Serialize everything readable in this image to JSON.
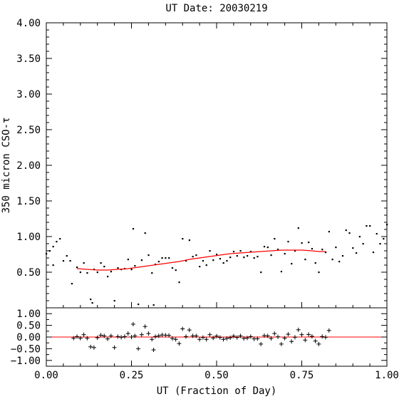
{
  "chart_data": [
    {
      "type": "scatter",
      "title": "UT Date: 20030219",
      "ylabel": "350 micron CSO-τ",
      "xlabel": "",
      "xlim": [
        0,
        1
      ],
      "ylim": [
        0,
        4
      ],
      "x_ticks": [
        0,
        0.25,
        0.5,
        0.75,
        1
      ],
      "y_tick_labels": [
        "0.50",
        "1.00",
        "1.50",
        "2.00",
        "2.50",
        "3.00",
        "3.50",
        "4.00"
      ],
      "y_ticks": [
        0.5,
        1.0,
        1.5,
        2.0,
        2.5,
        3.0,
        3.5,
        4.0
      ],
      "grid": false,
      "series": [
        {
          "marker": "dot",
          "color": "#000000",
          "points": [
            [
              0.0,
              0.76
            ],
            [
              0.01,
              0.8
            ],
            [
              0.02,
              0.86
            ],
            [
              0.03,
              0.93
            ],
            [
              0.04,
              0.97
            ],
            [
              0.02,
              0.6
            ],
            [
              0.05,
              0.66
            ],
            [
              0.06,
              0.73
            ],
            [
              0.07,
              0.66
            ],
            [
              0.075,
              0.34
            ],
            [
              0.09,
              0.57
            ],
            [
              0.1,
              0.5
            ],
            [
              0.11,
              0.63
            ],
            [
              0.12,
              0.49
            ],
            [
              0.13,
              0.12
            ],
            [
              0.135,
              0.07
            ],
            [
              0.14,
              0.54
            ],
            [
              0.15,
              0.5
            ],
            [
              0.16,
              0.63
            ],
            [
              0.17,
              0.58
            ],
            [
              0.18,
              0.44
            ],
            [
              0.19,
              0.51
            ],
            [
              0.2,
              0.1
            ],
            [
              0.21,
              0.56
            ],
            [
              0.22,
              0.54
            ],
            [
              0.23,
              0.55
            ],
            [
              0.24,
              0.68
            ],
            [
              0.25,
              0.54
            ],
            [
              0.255,
              1.11
            ],
            [
              0.26,
              0.59
            ],
            [
              0.27,
              0.05
            ],
            [
              0.28,
              0.67
            ],
            [
              0.29,
              1.05
            ],
            [
              0.3,
              0.74
            ],
            [
              0.31,
              0.49
            ],
            [
              0.315,
              0.04
            ],
            [
              0.32,
              0.61
            ],
            [
              0.33,
              0.65
            ],
            [
              0.34,
              0.7
            ],
            [
              0.35,
              0.7
            ],
            [
              0.36,
              0.7
            ],
            [
              0.37,
              0.56
            ],
            [
              0.38,
              0.53
            ],
            [
              0.39,
              0.36
            ],
            [
              0.4,
              0.97
            ],
            [
              0.41,
              0.66
            ],
            [
              0.42,
              0.95
            ],
            [
              0.43,
              0.72
            ],
            [
              0.44,
              0.74
            ],
            [
              0.45,
              0.58
            ],
            [
              0.46,
              0.66
            ],
            [
              0.47,
              0.6
            ],
            [
              0.48,
              0.8
            ],
            [
              0.49,
              0.67
            ],
            [
              0.5,
              0.75
            ],
            [
              0.51,
              0.69
            ],
            [
              0.52,
              0.63
            ],
            [
              0.53,
              0.66
            ],
            [
              0.54,
              0.71
            ],
            [
              0.55,
              0.79
            ],
            [
              0.56,
              0.73
            ],
            [
              0.57,
              0.8
            ],
            [
              0.58,
              0.71
            ],
            [
              0.59,
              0.73
            ],
            [
              0.6,
              0.79
            ],
            [
              0.61,
              0.7
            ],
            [
              0.62,
              0.72
            ],
            [
              0.63,
              0.5
            ],
            [
              0.64,
              0.86
            ],
            [
              0.65,
              0.85
            ],
            [
              0.66,
              0.74
            ],
            [
              0.67,
              0.97
            ],
            [
              0.68,
              0.82
            ],
            [
              0.69,
              0.51
            ],
            [
              0.7,
              0.76
            ],
            [
              0.71,
              0.93
            ],
            [
              0.72,
              0.62
            ],
            [
              0.73,
              0.8
            ],
            [
              0.74,
              1.12
            ],
            [
              0.75,
              0.91
            ],
            [
              0.76,
              0.68
            ],
            [
              0.77,
              0.92
            ],
            [
              0.78,
              0.83
            ],
            [
              0.79,
              0.63
            ],
            [
              0.8,
              0.5
            ],
            [
              0.81,
              0.82
            ],
            [
              0.82,
              0.78
            ],
            [
              0.83,
              1.07
            ],
            [
              0.84,
              0.68
            ],
            [
              0.85,
              0.85
            ],
            [
              0.86,
              0.65
            ],
            [
              0.87,
              0.73
            ],
            [
              0.88,
              1.09
            ],
            [
              0.89,
              1.05
            ],
            [
              0.9,
              0.84
            ],
            [
              0.91,
              0.77
            ],
            [
              0.92,
              1.0
            ],
            [
              0.93,
              0.9
            ],
            [
              0.94,
              1.15
            ],
            [
              0.95,
              1.15
            ],
            [
              0.96,
              0.78
            ],
            [
              0.97,
              1.04
            ],
            [
              0.98,
              0.9
            ],
            [
              0.99,
              0.97
            ],
            [
              1.0,
              1.17
            ]
          ]
        },
        {
          "name": "",
          "marker": "line",
          "color": "#ff0000",
          "points": [
            [
              0.09,
              0.55
            ],
            [
              0.12,
              0.54
            ],
            [
              0.15,
              0.53
            ],
            [
              0.18,
              0.53
            ],
            [
              0.21,
              0.54
            ],
            [
              0.24,
              0.55
            ],
            [
              0.27,
              0.57
            ],
            [
              0.3,
              0.59
            ],
            [
              0.33,
              0.61
            ],
            [
              0.36,
              0.63
            ],
            [
              0.39,
              0.65
            ],
            [
              0.42,
              0.68
            ],
            [
              0.45,
              0.7
            ],
            [
              0.48,
              0.72
            ],
            [
              0.51,
              0.74
            ],
            [
              0.54,
              0.76
            ],
            [
              0.57,
              0.77
            ],
            [
              0.6,
              0.78
            ],
            [
              0.63,
              0.79
            ],
            [
              0.66,
              0.8
            ],
            [
              0.69,
              0.81
            ],
            [
              0.72,
              0.81
            ],
            [
              0.75,
              0.81
            ],
            [
              0.78,
              0.8
            ],
            [
              0.8,
              0.79
            ],
            [
              0.82,
              0.79
            ]
          ]
        }
      ]
    },
    {
      "type": "scatter",
      "xlabel": "UT (Fraction of Day)",
      "ylabel": "",
      "xlim": [
        0,
        1
      ],
      "ylim": [
        -1.25,
        1.25
      ],
      "x_ticks": [
        0,
        0.25,
        0.5,
        0.75,
        1
      ],
      "x_tick_labels": [
        "0.00",
        "0.25",
        "0.50",
        "0.75",
        "1.00"
      ],
      "y_ticks": [
        -1.0,
        -0.5,
        0.0,
        0.5,
        1.0
      ],
      "y_tick_labels": [
        "−1.00",
        "−0.50",
        "0.00",
        "0.50",
        "1.00"
      ],
      "zero_line_color": "#ff0000",
      "series": [
        {
          "marker": "plus",
          "color": "#000000",
          "points": [
            [
              0.08,
              -0.05
            ],
            [
              0.09,
              0.02
            ],
            [
              0.1,
              -0.05
            ],
            [
              0.11,
              0.1
            ],
            [
              0.12,
              -0.05
            ],
            [
              0.13,
              -0.42
            ],
            [
              0.14,
              -0.45
            ],
            [
              0.15,
              -0.03
            ],
            [
              0.16,
              0.08
            ],
            [
              0.17,
              0.05
            ],
            [
              0.18,
              -0.08
            ],
            [
              0.19,
              0.05
            ],
            [
              0.2,
              -0.45
            ],
            [
              0.21,
              0.02
            ],
            [
              0.22,
              -0.01
            ],
            [
              0.23,
              0.02
            ],
            [
              0.24,
              0.15
            ],
            [
              0.25,
              0.0
            ],
            [
              0.255,
              0.55
            ],
            [
              0.26,
              0.05
            ],
            [
              0.27,
              -0.5
            ],
            [
              0.28,
              0.1
            ],
            [
              0.29,
              0.45
            ],
            [
              0.3,
              0.15
            ],
            [
              0.31,
              -0.1
            ],
            [
              0.315,
              -0.55
            ],
            [
              0.32,
              0.02
            ],
            [
              0.33,
              0.05
            ],
            [
              0.34,
              0.09
            ],
            [
              0.35,
              0.08
            ],
            [
              0.36,
              0.07
            ],
            [
              0.37,
              -0.06
            ],
            [
              0.38,
              -0.1
            ],
            [
              0.39,
              -0.28
            ],
            [
              0.4,
              0.35
            ],
            [
              0.41,
              0.02
            ],
            [
              0.42,
              0.3
            ],
            [
              0.43,
              0.05
            ],
            [
              0.44,
              0.05
            ],
            [
              0.45,
              -0.1
            ],
            [
              0.46,
              -0.02
            ],
            [
              0.47,
              -0.1
            ],
            [
              0.48,
              0.1
            ],
            [
              0.49,
              -0.04
            ],
            [
              0.5,
              0.04
            ],
            [
              0.51,
              -0.02
            ],
            [
              0.52,
              -0.1
            ],
            [
              0.53,
              -0.06
            ],
            [
              0.54,
              -0.03
            ],
            [
              0.55,
              0.04
            ],
            [
              0.56,
              -0.02
            ],
            [
              0.57,
              0.05
            ],
            [
              0.58,
              -0.06
            ],
            [
              0.59,
              -0.04
            ],
            [
              0.6,
              0.02
            ],
            [
              0.61,
              -0.08
            ],
            [
              0.62,
              -0.07
            ],
            [
              0.63,
              -0.3
            ],
            [
              0.64,
              0.06
            ],
            [
              0.65,
              0.05
            ],
            [
              0.66,
              -0.06
            ],
            [
              0.67,
              0.15
            ],
            [
              0.68,
              0.01
            ],
            [
              0.69,
              -0.3
            ],
            [
              0.7,
              -0.05
            ],
            [
              0.71,
              0.12
            ],
            [
              0.72,
              -0.19
            ],
            [
              0.73,
              -0.01
            ],
            [
              0.74,
              0.31
            ],
            [
              0.75,
              0.1
            ],
            [
              0.76,
              -0.13
            ],
            [
              0.77,
              0.11
            ],
            [
              0.78,
              0.03
            ],
            [
              0.79,
              -0.17
            ],
            [
              0.8,
              -0.3
            ],
            [
              0.81,
              0.02
            ],
            [
              0.82,
              -0.01
            ],
            [
              0.83,
              0.28
            ]
          ]
        }
      ]
    }
  ]
}
